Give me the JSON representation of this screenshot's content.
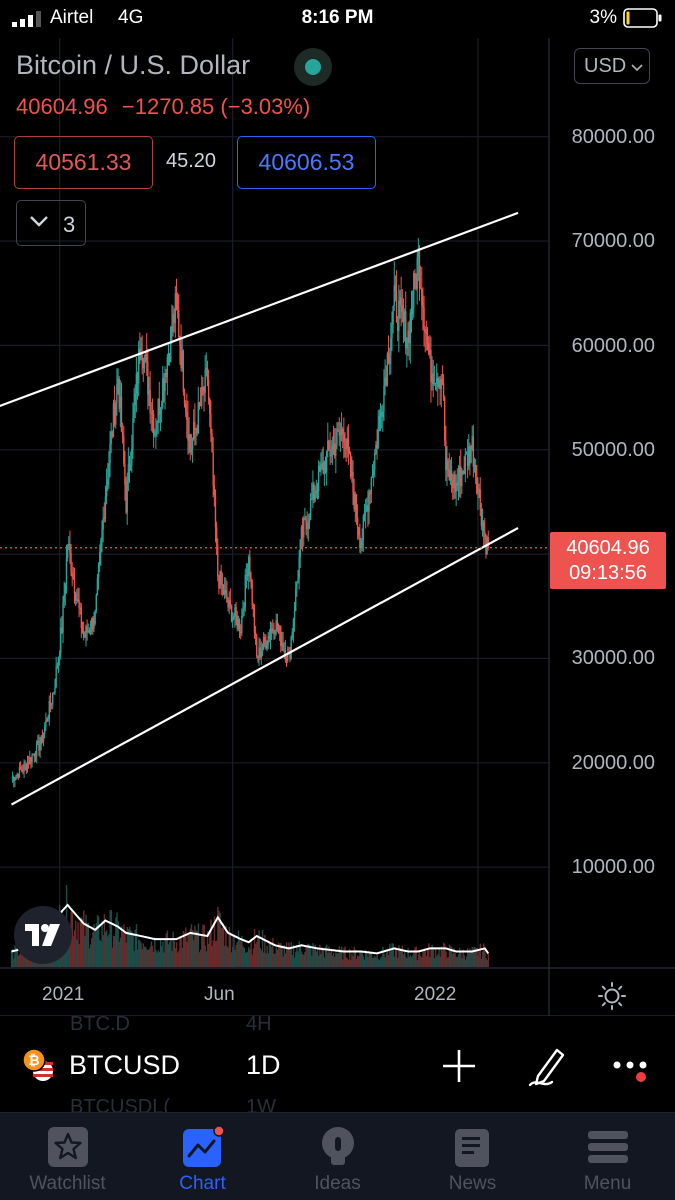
{
  "status_bar": {
    "carrier": "Airtel",
    "network": "4G",
    "time": "8:16 PM",
    "battery_percent": "3%",
    "battery_level": 0.03
  },
  "header": {
    "symbol_name": "Bitcoin / U.S. Dollar",
    "live_indicator_color": "#26a69a",
    "currency": "USD",
    "last_price": "40604.96",
    "change": "−1270.85",
    "change_percent": "(−3.03%)",
    "bid": "40561.33",
    "spread": "45.20",
    "ask": "40606.53",
    "indicators_count": "3"
  },
  "price_axis": {
    "labels": [
      "80000.00",
      "70000.00",
      "60000.00",
      "50000.00",
      "30000.00",
      "20000.00",
      "10000.00"
    ],
    "last_price_label": "40604.96",
    "countdown": "09:13:56"
  },
  "time_axis": {
    "labels": [
      "2021",
      "Jun",
      "2022"
    ]
  },
  "colors": {
    "up": "#26a69a",
    "down": "#ef5350",
    "accent": "#2962ff",
    "trendline": "#ffffff"
  },
  "chart_data": {
    "type": "candlestick",
    "title": "Bitcoin / U.S. Dollar",
    "interval": "1D",
    "ylim": [
      0,
      85000
    ],
    "x_ticks": [
      "2021",
      "Jun",
      "2022"
    ],
    "y_ticks": [
      10000,
      20000,
      30000,
      40000,
      50000,
      60000,
      70000,
      80000
    ],
    "last_close": 40604.96,
    "series": [
      {
        "kind": "close",
        "dates": [
          "2020-11-20",
          "2020-12-01",
          "2020-12-16",
          "2020-12-27",
          "2021-01-03",
          "2021-01-08",
          "2021-01-22",
          "2021-02-01",
          "2021-02-10",
          "2021-02-21",
          "2021-02-28",
          "2021-03-13",
          "2021-03-25",
          "2021-04-13",
          "2021-04-25",
          "2021-05-10",
          "2021-05-19",
          "2021-05-28",
          "2021-06-08",
          "2021-06-15",
          "2021-06-22",
          "2021-07-08",
          "2021-07-20",
          "2021-07-31",
          "2021-08-14",
          "2021-08-23",
          "2021-09-06",
          "2021-09-21",
          "2021-10-05",
          "2021-10-20",
          "2021-11-01",
          "2021-11-10",
          "2021-11-20",
          "2021-12-01",
          "2021-12-04",
          "2021-12-13",
          "2021-12-27",
          "2022-01-07",
          "2022-01-10"
        ],
        "values": [
          18500,
          19500,
          22000,
          27000,
          33000,
          41000,
          32000,
          34000,
          46000,
          57000,
          45000,
          61000,
          52000,
          64000,
          50000,
          57000,
          38000,
          35000,
          33000,
          40000,
          30000,
          33500,
          29800,
          41500,
          47000,
          49500,
          52000,
          41000,
          51000,
          64000,
          61000,
          68500,
          58000,
          57000,
          48000,
          46500,
          50500,
          41500,
          40604.96
        ]
      }
    ],
    "volume": {
      "label": "Volume",
      "relative": [
        0.25,
        0.3,
        0.35,
        0.6,
        0.9,
        1.0,
        0.7,
        0.6,
        0.75,
        0.65,
        0.55,
        0.5,
        0.45,
        0.45,
        0.55,
        0.5,
        0.8,
        0.55,
        0.45,
        0.4,
        0.5,
        0.35,
        0.3,
        0.35,
        0.3,
        0.28,
        0.25,
        0.25,
        0.22,
        0.3,
        0.25,
        0.25,
        0.3,
        0.3,
        0.3,
        0.25,
        0.25,
        0.3,
        0.22
      ]
    },
    "trendlines": [
      {
        "name": "upper channel",
        "from": [
          "2020-11-05",
          54000
        ],
        "to": [
          "2022-02-05",
          72700
        ]
      },
      {
        "name": "lower channel",
        "from": [
          "2020-11-20",
          16000
        ],
        "to": [
          "2022-02-05",
          42500
        ]
      }
    ]
  },
  "ghost_rows": {
    "row1_symbol": "BTC.D",
    "row1_interval": "4H",
    "row2_symbol": "BTCUSDL(",
    "row2_interval": "1W"
  },
  "symbol_bar": {
    "symbol": "BTCUSD",
    "interval": "1D"
  },
  "tabs": [
    {
      "label": "Watchlist",
      "icon": "star-icon"
    },
    {
      "label": "Chart",
      "icon": "chart-icon",
      "active": true
    },
    {
      "label": "Ideas",
      "icon": "bulb-icon"
    },
    {
      "label": "News",
      "icon": "news-icon"
    },
    {
      "label": "Menu",
      "icon": "menu-icon"
    }
  ]
}
